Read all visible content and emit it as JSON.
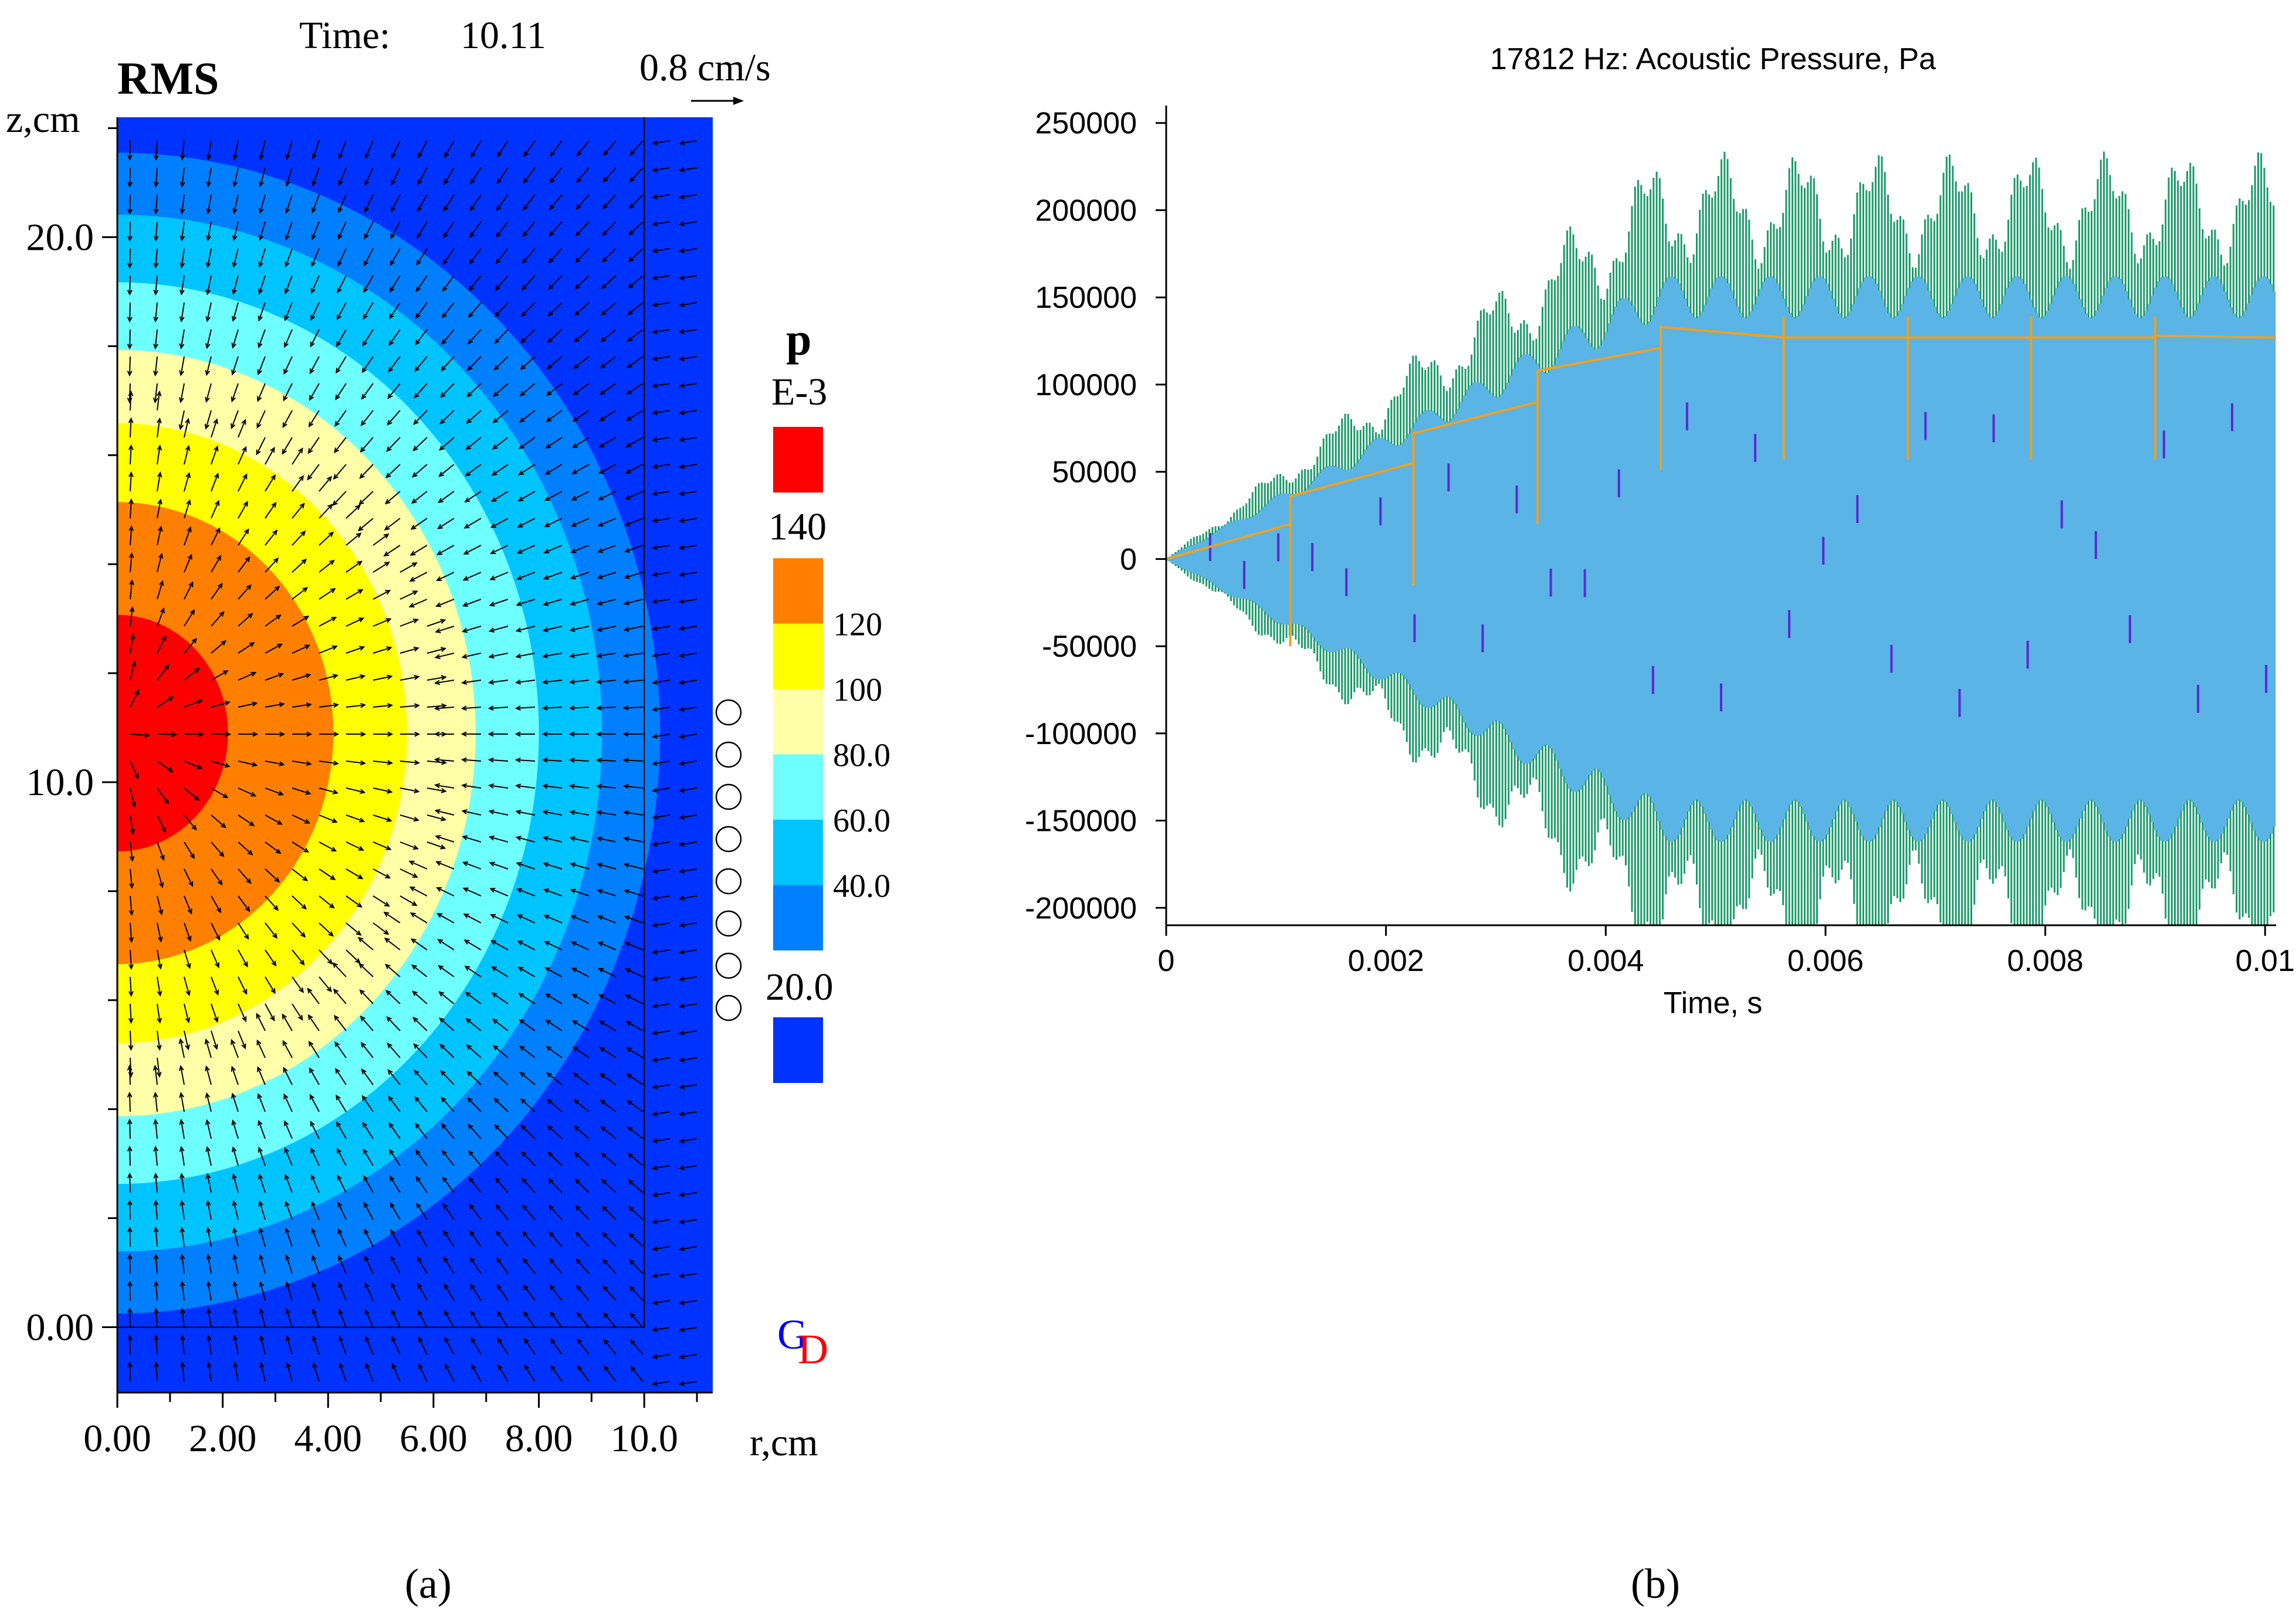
{
  "chart_data": [
    {
      "type": "contour",
      "panel_label": "(a)",
      "title": "RMS",
      "time_label": "Time:",
      "time_value": "10.11",
      "velocity_scale_label": "0.8 cm/s",
      "xlabel": "r,cm",
      "ylabel": "z,cm",
      "xlim": [
        0,
        11.3
      ],
      "ylim": [
        -1.2,
        22.2
      ],
      "x_ticks": [
        "0.00",
        "2.00",
        "4.00",
        "6.00",
        "8.00",
        "10.0"
      ],
      "y_ticks": [
        "0.00",
        "10.0",
        "20.0"
      ],
      "domain_wall_r": 10.0,
      "contour_center": [
        0,
        10.9
      ],
      "contour_levels_radii": [
        {
          "from": 0,
          "to": 2.1,
          "color": "#ff0000"
        },
        {
          "from": 2.1,
          "to": 4.1,
          "color": "#ff8000"
        },
        {
          "from": 4.1,
          "to": 5.5,
          "color": "#ffff00"
        },
        {
          "from": 5.5,
          "to": 6.8,
          "color": "#ffffa8"
        },
        {
          "from": 6.8,
          "to": 8.0,
          "color": "#6effff"
        },
        {
          "from": 8.0,
          "to": 9.2,
          "color": "#00c4ff"
        },
        {
          "from": 9.2,
          "to": 10.3,
          "color": "#0080ff"
        }
      ],
      "legend": {
        "variable": "p",
        "scale": "E-3",
        "swatches": [
          {
            "color": "#ff0000",
            "label": "140"
          },
          {
            "color": "#ff8000",
            "label": "120"
          },
          {
            "color": "#ffff00",
            "label": "100"
          },
          {
            "color": "#ffffa8",
            "label": "80.0"
          },
          {
            "color": "#6effff",
            "label": "60.0"
          },
          {
            "color": "#00c4ff",
            "label": "40.0"
          },
          {
            "color": "#0080ff",
            "label": "20.0"
          },
          {
            "color": "#0033ff",
            "label": ""
          }
        ]
      },
      "transducer_circles": 8,
      "logo": {
        "g": "G",
        "d": "D",
        "g_color": "#0000ff",
        "d_color": "#ff0000"
      }
    },
    {
      "type": "line",
      "panel_label": "(b)",
      "title": "17812 Hz:  Acoustic Pressure, Pa",
      "xlabel": "Time, s",
      "ylabel": "",
      "xlim": [
        0,
        0.0101
      ],
      "ylim": [
        -210000,
        260000
      ],
      "x_ticks": [
        "0",
        "0.002",
        "0.004",
        "0.006",
        "0.008",
        "0.01"
      ],
      "x_tick_values": [
        0,
        0.002,
        0.004,
        0.006,
        0.008,
        0.01
      ],
      "y_ticks": [
        "250000",
        "200000",
        "150000",
        "100000",
        "50000",
        "0",
        "-50000",
        "-100000",
        "-150000",
        "-200000"
      ],
      "y_tick_values": [
        250000,
        200000,
        150000,
        100000,
        50000,
        0,
        -50000,
        -100000,
        -150000,
        -200000
      ],
      "series": [
        {
          "name": "pressure envelope (outer)",
          "color": "#1a9a6a",
          "ramp_end_time": 0.0045,
          "max_amplitude": 200000
        },
        {
          "name": "pressure (inner)",
          "color": "#5ab4e6",
          "ramp_end_time": 0.0045,
          "max_amplitude": 150000
        },
        {
          "name": "mean pressure",
          "color": "#f0a020",
          "x": [
            0,
            0.00113,
            0.00113,
            0.00225,
            0.00225,
            0.00338,
            0.00338,
            0.0045,
            0.0045,
            0.00562,
            0.00562,
            0.00675,
            0.00675,
            0.00787,
            0.00787,
            0.009,
            0.009,
            0.0101
          ],
          "y": [
            0,
            20000,
            36000,
            55000,
            72000,
            90000,
            108000,
            121000,
            133000,
            127000,
            127000,
            127000,
            127000,
            127000,
            127000,
            127000,
            128000,
            127000
          ]
        }
      ],
      "spike_times": [
        0.00113,
        0.00225,
        0.00338,
        0.0045,
        0.00562,
        0.00675,
        0.00787,
        0.009
      ],
      "colors": {
        "outer": "#1a9a6a",
        "inner": "#5ab4e6",
        "mean": "#f0a020",
        "marker": "#5a2ad0"
      }
    }
  ]
}
